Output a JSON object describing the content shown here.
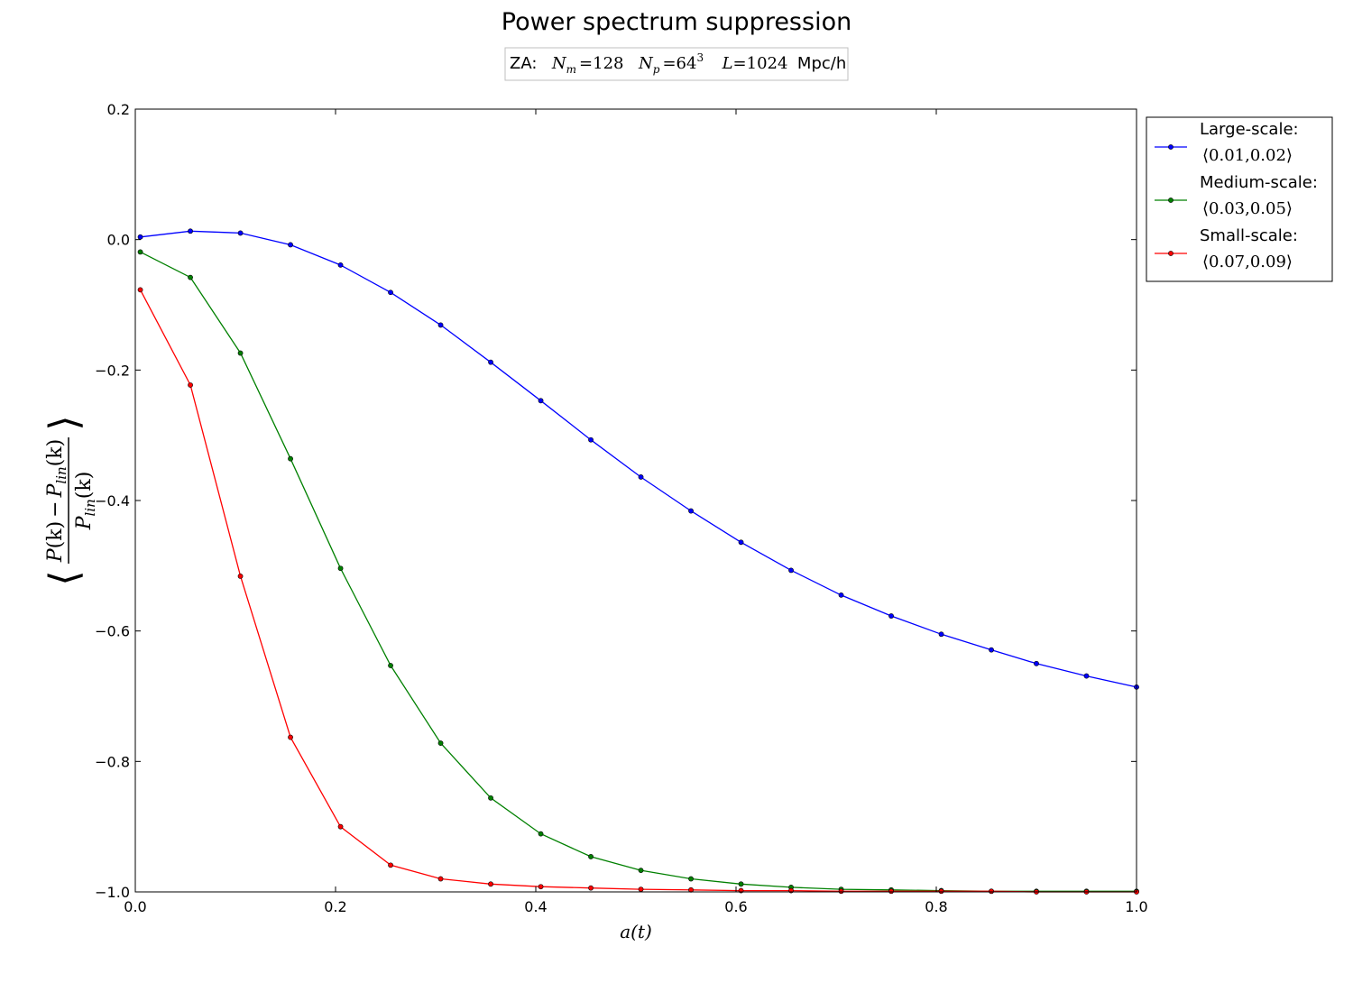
{
  "chart_data": {
    "type": "line",
    "title": "Power spectrum suppression",
    "subtitle": {
      "prefix": "ZA:",
      "nm_label": "N",
      "nm_sub": "m",
      "nm_value": "=128",
      "np_label": "N",
      "np_sub": "p",
      "np_value": "=64",
      "np_exp": "3",
      "l_label": "L",
      "l_value": "=1024",
      "unit": "Mpc/h"
    },
    "xlabel": "a(t)",
    "ylabel": {
      "p1": "P",
      "k1": "(k)",
      "minus": "−",
      "p2": "P",
      "sub2": "lin",
      "k2": "(k)",
      "p3": "P",
      "sub3": "lin",
      "k3": "(k)"
    },
    "xlim": [
      0.0,
      1.0
    ],
    "ylim": [
      -1.0,
      0.2
    ],
    "xticks": [
      0.0,
      0.2,
      0.4,
      0.6,
      0.8,
      1.0
    ],
    "xtick_labels": [
      "0.0",
      "0.2",
      "0.4",
      "0.6",
      "0.8",
      "1.0"
    ],
    "yticks": [
      0.2,
      0.0,
      -0.2,
      -0.4,
      -0.6,
      -0.8,
      -1.0
    ],
    "ytick_labels": [
      "0.2",
      "0.0",
      "−0.2",
      "−0.4",
      "−0.6",
      "−0.8",
      "−1.0"
    ],
    "grid": false,
    "legend_position": "outside-top-right",
    "x": [
      0.005,
      0.055,
      0.105,
      0.155,
      0.205,
      0.255,
      0.305,
      0.355,
      0.405,
      0.455,
      0.505,
      0.555,
      0.605,
      0.655,
      0.705,
      0.755,
      0.805,
      0.855,
      0.9,
      0.95,
      1.0
    ],
    "series": [
      {
        "name": "Large-scale:",
        "range": "⟨0.01,0.02⟩",
        "color": "#0000ff",
        "values": [
          0.004,
          0.013,
          0.01,
          -0.008,
          -0.039,
          -0.081,
          -0.131,
          -0.188,
          -0.247,
          -0.307,
          -0.364,
          -0.416,
          -0.464,
          -0.507,
          -0.545,
          -0.577,
          -0.605,
          -0.629,
          -0.65,
          -0.669,
          -0.686
        ]
      },
      {
        "name": "Medium-scale:",
        "range": "⟨0.03,0.05⟩",
        "color": "#008000",
        "values": [
          -0.019,
          -0.058,
          -0.174,
          -0.336,
          -0.504,
          -0.653,
          -0.772,
          -0.856,
          -0.911,
          -0.946,
          -0.967,
          -0.98,
          -0.988,
          -0.993,
          -0.996,
          -0.997,
          -0.998,
          -0.999,
          -0.999,
          -0.999,
          -0.999
        ]
      },
      {
        "name": "Small-scale:",
        "range": "⟨0.07,0.09⟩",
        "color": "#ff0000",
        "values": [
          -0.077,
          -0.223,
          -0.516,
          -0.763,
          -0.9,
          -0.959,
          -0.98,
          -0.988,
          -0.992,
          -0.994,
          -0.996,
          -0.997,
          -0.998,
          -0.998,
          -0.999,
          -0.999,
          -0.999,
          -0.999,
          -1.0,
          -1.0,
          -1.0
        ]
      }
    ]
  }
}
